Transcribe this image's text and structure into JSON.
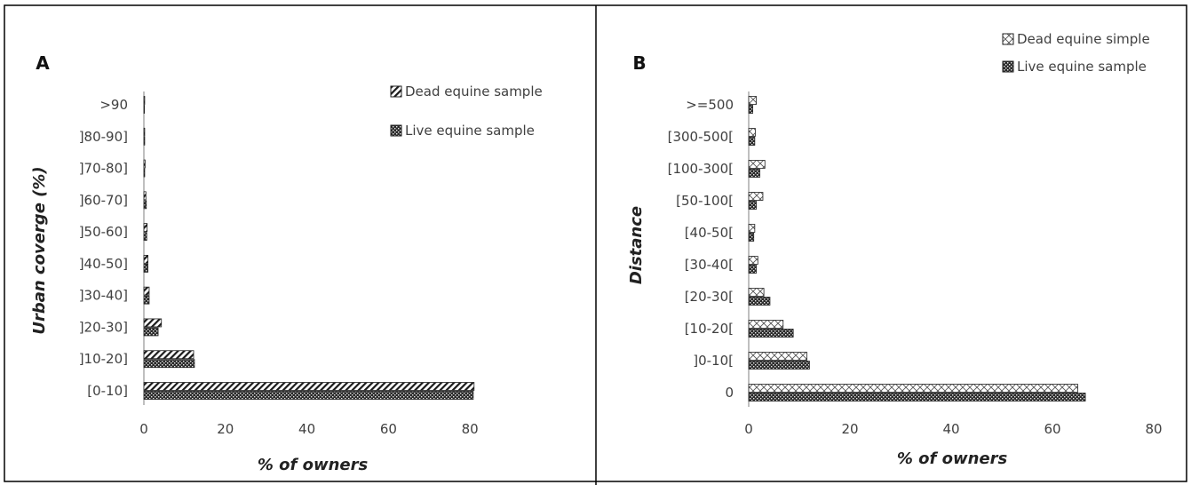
{
  "chart_data": [
    {
      "type": "bar",
      "orientation": "horizontal",
      "panel_label": "A",
      "categories": [
        "[0-10]",
        "]10-20]",
        "]20-30]",
        "]30-40]",
        "]40-50]",
        "]50-60]",
        "]60-70]",
        "]70-80]",
        "]80-90]",
        ">90"
      ],
      "series": [
        {
          "name": "Dead equine sample",
          "pattern": "diagonal-hatch",
          "values": [
            81,
            12.2,
            4.3,
            1.3,
            1.0,
            0.8,
            0.5,
            0.3,
            0.2,
            0.2
          ]
        },
        {
          "name": "Live equine sample",
          "pattern": "crosshatch-dense",
          "values": [
            80.8,
            12.4,
            3.5,
            1.3,
            1.0,
            0.7,
            0.6,
            0.2,
            0.2,
            0.1
          ]
        }
      ],
      "xlabel": "% of owners",
      "ylabel": "Urban coverge (%)",
      "xlim": [
        0,
        80
      ],
      "xticks": [
        "0",
        "20",
        "40",
        "60",
        "80"
      ],
      "grid": false,
      "legend_position": "top-right"
    },
    {
      "type": "bar",
      "orientation": "horizontal",
      "panel_label": "B",
      "categories": [
        "0",
        "]0-10[",
        "[10-20[",
        "[20-30[",
        "[30-40[",
        "[40-50[",
        "[50-100[",
        "[100-300[",
        "[300-500[",
        ">=500"
      ],
      "series": [
        {
          "name": "Dead equine simple",
          "pattern": "diamond-lattice",
          "values": [
            65,
            11.5,
            6.8,
            3.0,
            1.8,
            1.2,
            2.8,
            3.2,
            1.3,
            1.5
          ]
        },
        {
          "name": "Live equine sample",
          "pattern": "crosshatch-dense",
          "values": [
            66.5,
            12.0,
            8.8,
            4.2,
            1.5,
            1.0,
            1.5,
            2.2,
            1.2,
            0.8
          ]
        }
      ],
      "xlabel": "% of owners",
      "ylabel": "Distance",
      "xlim": [
        0,
        80
      ],
      "xticks": [
        "0",
        "20",
        "40",
        "60",
        "80"
      ],
      "grid": false,
      "legend_position": "top-right"
    }
  ]
}
